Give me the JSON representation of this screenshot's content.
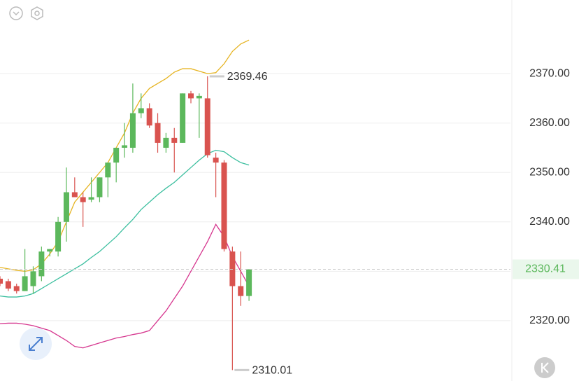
{
  "chart_data": {
    "type": "candlestick",
    "ylim": [
      2307.8,
      2384.9
    ],
    "yticks": [
      {
        "value": 2320,
        "label": "2320.00"
      },
      {
        "value": 2330,
        "label": "2330.00"
      },
      {
        "value": 2340,
        "label": "2340.00"
      },
      {
        "value": 2350,
        "label": "2350.00"
      },
      {
        "value": 2360,
        "label": "2360.00"
      },
      {
        "value": 2370,
        "label": "2370.00"
      }
    ],
    "grid": true,
    "up_color": "#5cb85c",
    "down_color": "#d9534f",
    "open": [
      2328.5,
      2328,
      2327,
      2326,
      2327,
      2329,
      2334,
      2334,
      2340,
      2346,
      2345,
      2344.5,
      2345,
      2349,
      2352,
      2355,
      2355,
      2362,
      2363,
      2360,
      2355,
      2357,
      2356,
      2366,
      2365,
      2365,
      2353,
      2352,
      2334,
      2327,
      2325
    ],
    "high": [
      2329,
      2328.5,
      2327.5,
      2334.5,
      2331,
      2335,
      2334.5,
      2341,
      2351,
      2349,
      2346,
      2349,
      2349,
      2352,
      2355,
      2360,
      2368,
      2366,
      2364,
      2362,
      2358,
      2359,
      2366,
      2366.5,
      2366,
      2369.46,
      2354,
      2352.5,
      2335,
      2334,
      2330.41
    ],
    "low": [
      2327,
      2326,
      2325.5,
      2326,
      2325.5,
      2328,
      2333,
      2333,
      2336,
      2345,
      2339,
      2344,
      2344,
      2345,
      2348,
      2353,
      2354,
      2361,
      2359,
      2354,
      2354,
      2350,
      2356,
      2364,
      2357,
      2353,
      2345,
      2334,
      2310.01,
      2323,
      2324
    ],
    "close": [
      2327.5,
      2326.5,
      2326,
      2329,
      2330,
      2334,
      2334.5,
      2340,
      2346,
      2345,
      2344,
      2345,
      2349,
      2352,
      2355,
      2355.5,
      2362,
      2363,
      2359.5,
      2356,
      2357,
      2356,
      2366,
      2365,
      2365.5,
      2353.5,
      2352,
      2334.5,
      2327,
      2325,
      2330.41
    ],
    "series": [
      {
        "color": "#e6b422",
        "values": [
          2330.8,
          2330.5,
          2330.2,
          2330,
          2330.3,
          2331.5,
          2333.5,
          2336,
          2340,
          2344,
          2346,
          2348,
          2350,
          2352,
          2355,
          2358,
          2362,
          2365,
          2367,
          2368,
          2369,
          2370.3,
          2371,
          2371,
          2370.5,
          2370,
          2370.2,
          2372,
          2374.5,
          2376,
          2376.8
        ]
      },
      {
        "color": "#3cbf9f",
        "values": [
          2325,
          2324.8,
          2324.8,
          2325,
          2325.5,
          2326.5,
          2327.5,
          2328.5,
          2329.5,
          2330.5,
          2331.5,
          2332.8,
          2334,
          2335.5,
          2337,
          2338.8,
          2340.5,
          2342.5,
          2344,
          2345.5,
          2346.8,
          2348,
          2349.5,
          2351,
          2352.5,
          2353.8,
          2354.5,
          2354.2,
          2353,
          2352,
          2351.5
        ]
      },
      {
        "color": "#d6378f",
        "values": [
          2319.4,
          2319.5,
          2319.5,
          2319.3,
          2319,
          2318.5,
          2318,
          2317,
          2316,
          2314.8,
          2314.5,
          2315,
          2315.5,
          2316,
          2316.5,
          2316.8,
          2317.2,
          2317.5,
          2318,
          2320,
          2322,
          2324.5,
          2327,
          2330,
          2333,
          2336,
          2339.5,
          2337,
          2333,
          2330,
          2327
        ]
      }
    ]
  }
}
